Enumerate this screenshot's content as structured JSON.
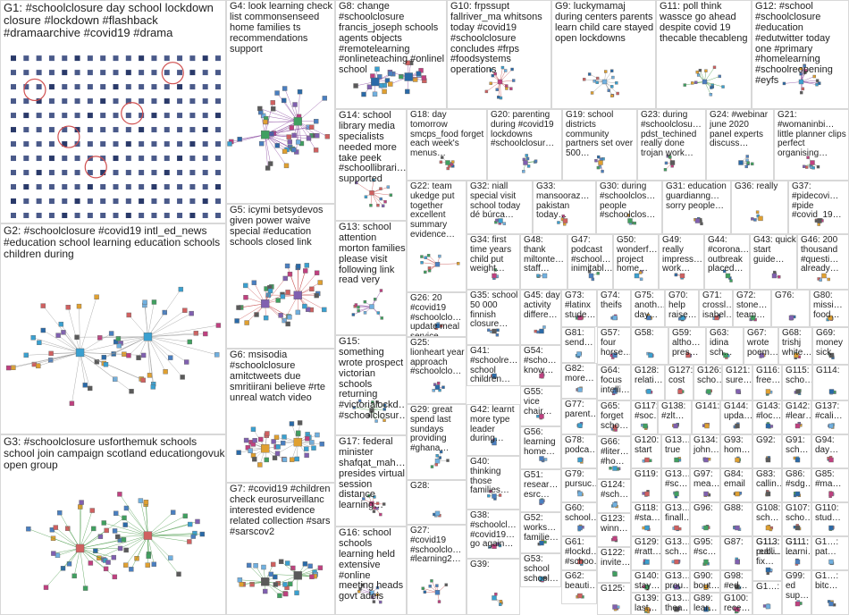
{
  "diagram": {
    "groups": [
      {
        "id": "G1",
        "label": "G1: #schoolclosure day school lockdown closure #lockdown #flashback #dramaarchive #covid19 #drama",
        "layout": "grid"
      },
      {
        "id": "G2",
        "label": "G2: #schoolclosure #covid19 intl_ed_news #education school learning education schools children during",
        "layout": "cluster"
      },
      {
        "id": "G3",
        "label": "G3: #schoolclosure usforthemuk schools school join campaign scotland educationgovuk open group",
        "layout": "cluster"
      },
      {
        "id": "G4",
        "label": "G4: look learning check list commonsenseed home families ts recommendations support",
        "layout": "cluster"
      },
      {
        "id": "G5",
        "label": "G5: icymi betsydevos given power waive special #education schools closed link",
        "layout": "star"
      },
      {
        "id": "G6",
        "label": "G6: msisodia #schoolclosure amitctweets due smritiirani believe #rte unreal watch video",
        "layout": "star"
      },
      {
        "id": "G7",
        "label": "G7: #covid19 #children check eurosurveillanc interested evidence related collection #sars #sarscov2",
        "layout": "cluster"
      },
      {
        "id": "G8",
        "label": "G8: change #schoolclosure francis_joseph schools agents objects #remotelearning #onlineteaching #onlinel school",
        "layout": "cluster"
      },
      {
        "id": "G10",
        "label": "G10: frpssupt fallriver_ma whitsons today #covid19 #schoolclosure concludes #frps #foodsystems operations",
        "layout": "cluster"
      },
      {
        "id": "G9",
        "label": "G9: luckymamaj during centers parents learn child care stayed open lockdowns",
        "layout": "cluster"
      },
      {
        "id": "G11",
        "label": "G11: poll think wassce go ahead despite covid 19 thecable thecableng",
        "layout": "cluster"
      },
      {
        "id": "G12",
        "label": "G12: #school #schoolclosure #education #edutwitter today one #primary #homelearning #schoolreopening #eyfs",
        "layout": "cluster"
      },
      {
        "id": "G14",
        "label": "G14: school library media specialists needed more take peek #schoollibrari… supported",
        "layout": "cluster"
      },
      {
        "id": "G18",
        "label": "G18: day tomorrow smcps_food forget each week's menus…",
        "layout": "cluster"
      },
      {
        "id": "G20",
        "label": "G20: parenting during #covid19 lockdowns #schoolclosur…",
        "layout": "cluster"
      },
      {
        "id": "G19",
        "label": "G19: school districts community partners set over 500…",
        "layout": "cluster"
      },
      {
        "id": "G23",
        "label": "G23: during #schoolclosu… pdst_techined really done trojan work…",
        "layout": "cluster"
      },
      {
        "id": "G24",
        "label": "G24: #webinar june 2020 panel experts discuss…",
        "layout": "cluster"
      },
      {
        "id": "G21",
        "label": "G21: #womaninbi… little planner clips perfect organising…",
        "layout": "cluster"
      },
      {
        "id": "G13",
        "label": "G13: school attention morton families please visit following link read very",
        "layout": "cluster"
      },
      {
        "id": "G22",
        "label": "G22: team ukedge put together excellent summary evidence…",
        "layout": "cluster"
      },
      {
        "id": "G32",
        "label": "G32: niall special visit school today dé búrca…",
        "layout": "cluster"
      },
      {
        "id": "G33",
        "label": "G33: mansooraz… pakistan today…",
        "layout": "cluster"
      },
      {
        "id": "G30",
        "label": "G30: during #schoolclos… people #schoolclos…",
        "layout": "cluster"
      },
      {
        "id": "G31",
        "label": "G31: education guardianng… sorry people…",
        "layout": "cluster"
      },
      {
        "id": "G36",
        "label": "G36: really",
        "layout": "cluster"
      },
      {
        "id": "G37",
        "label": "G37: #pidecovi… #pide #covid_19…",
        "layout": "cluster"
      },
      {
        "id": "G26",
        "label": "G26: 20 #covid19 #schoolclo… update meal service closed…",
        "layout": "cluster"
      },
      {
        "id": "G34",
        "label": "G34: first time years child put weight…",
        "layout": "cluster"
      },
      {
        "id": "G48",
        "label": "G48: thank miltonte… staff…",
        "layout": "cluster"
      },
      {
        "id": "G47",
        "label": "G47: podcast #school… inimitabl…",
        "layout": "cluster"
      },
      {
        "id": "G50",
        "label": "G50: wonderf… project home…",
        "layout": "cluster"
      },
      {
        "id": "G49",
        "label": "G49: really impress… work…",
        "layout": "cluster"
      },
      {
        "id": "G44",
        "label": "G44: #corona… outbreak placed…",
        "layout": "cluster"
      },
      {
        "id": "G43",
        "label": "G43: quick start guide…",
        "layout": "cluster"
      },
      {
        "id": "G46",
        "label": "G46: 200 thousand #questi… already…",
        "layout": "cluster"
      },
      {
        "id": "G35",
        "label": "G35: school 50 000 finnish closure…",
        "layout": "cluster"
      },
      {
        "id": "G45",
        "label": "G45: day activity differe…",
        "layout": "cluster"
      },
      {
        "id": "G73",
        "label": "G73: #latinx stude…",
        "layout": "cluster"
      },
      {
        "id": "G74",
        "label": "G74: theifs",
        "layout": "cluster"
      },
      {
        "id": "G75",
        "label": "G75: anoth… day…",
        "layout": "cluster"
      },
      {
        "id": "G70",
        "label": "G70: help raise…",
        "layout": "cluster"
      },
      {
        "id": "G71",
        "label": "G71: crossl… isabel…",
        "layout": "cluster"
      },
      {
        "id": "G72",
        "label": "G72: stone… team…",
        "layout": "cluster"
      },
      {
        "id": "G76",
        "label": "G76:",
        "layout": "cluster"
      },
      {
        "id": "G80",
        "label": "G80: missi… food…",
        "layout": "cluster"
      },
      {
        "id": "G15",
        "label": "G15: something wrote prospect victorian schools returning #victorialockd… #schoolclosur…",
        "layout": "cluster"
      },
      {
        "id": "G25",
        "label": "G25: lionheart year approach #schoolclo…",
        "layout": "cluster"
      },
      {
        "id": "G54",
        "label": "G54: #scho… know…",
        "layout": "cluster"
      },
      {
        "id": "G81",
        "label": "G81: send…",
        "layout": "cluster"
      },
      {
        "id": "G57",
        "label": "G57: four horse…",
        "layout": "cluster"
      },
      {
        "id": "G58",
        "label": "G58:",
        "layout": "cluster"
      },
      {
        "id": "G59",
        "label": "G59: altho… pres…",
        "layout": "cluster"
      },
      {
        "id": "G63",
        "label": "G63: idina sch…",
        "layout": "cluster"
      },
      {
        "id": "G67",
        "label": "G67: wrote poem…",
        "layout": "cluster"
      },
      {
        "id": "G68",
        "label": "G68: trishj white…",
        "layout": "cluster"
      },
      {
        "id": "G69",
        "label": "G69: money sick",
        "layout": "cluster"
      },
      {
        "id": "G41",
        "label": "G41: #schoolre… school children…",
        "layout": "cluster"
      },
      {
        "id": "G55",
        "label": "G55: vice chair…",
        "layout": "cluster"
      },
      {
        "id": "G82",
        "label": "G82: more…",
        "layout": "cluster"
      },
      {
        "id": "G64",
        "label": "G64: focus intelli…",
        "layout": "cluster"
      },
      {
        "id": "G128",
        "label": "G128: relati…",
        "layout": "cluster"
      },
      {
        "id": "G127",
        "label": "G127: cost",
        "layout": "cluster"
      },
      {
        "id": "G126",
        "label": "G126: scho…",
        "layout": "cluster"
      },
      {
        "id": "G121",
        "label": "G121: sure…",
        "layout": "cluster"
      },
      {
        "id": "G116",
        "label": "G116: free…",
        "layout": "cluster"
      },
      {
        "id": "G115",
        "label": "G115: scho…",
        "layout": "cluster"
      },
      {
        "id": "G114",
        "label": "G114:",
        "layout": "cluster"
      },
      {
        "id": "G17",
        "label": "G17: federal minister shafqat_mah… presides virtual session distance learning…",
        "layout": "cluster"
      },
      {
        "id": "G29",
        "label": "G29: great spend last sundays providing #ghana…",
        "layout": "cluster"
      },
      {
        "id": "G42",
        "label": "G42: learnt more type leader during…",
        "layout": "cluster"
      },
      {
        "id": "G77",
        "label": "G77: parent…",
        "layout": "cluster"
      },
      {
        "id": "G65",
        "label": "G65: forget scho…",
        "layout": "cluster"
      },
      {
        "id": "G117",
        "label": "G117: #soc…",
        "layout": "cluster"
      },
      {
        "id": "G138",
        "label": "G138: #zlt…",
        "layout": "cluster"
      },
      {
        "id": "G141",
        "label": "G141:",
        "layout": "cluster"
      },
      {
        "id": "G144",
        "label": "G144: upda…",
        "layout": "cluster"
      },
      {
        "id": "G143",
        "label": "G143: #loc…",
        "layout": "cluster"
      },
      {
        "id": "G142",
        "label": "G142: #lear…",
        "layout": "cluster"
      },
      {
        "id": "G137",
        "label": "G137: #cali…",
        "layout": "cluster"
      },
      {
        "id": "G56",
        "label": "G56: learning home…",
        "layout": "cluster"
      },
      {
        "id": "G78",
        "label": "G78: podca…",
        "layout": "cluster"
      },
      {
        "id": "G120",
        "label": "G120: start",
        "layout": "cluster"
      },
      {
        "id": "G13b",
        "label": "G13…: true",
        "layout": "cluster"
      },
      {
        "id": "G134",
        "label": "G134: john…",
        "layout": "cluster"
      },
      {
        "id": "G93",
        "label": "G93: hom…",
        "layout": "cluster"
      },
      {
        "id": "G92",
        "label": "G92:",
        "layout": "cluster"
      },
      {
        "id": "G91",
        "label": "G91: sch…",
        "layout": "cluster"
      },
      {
        "id": "G94",
        "label": "G94: day…",
        "layout": "cluster"
      },
      {
        "id": "G28",
        "label": "G28:",
        "layout": "cluster"
      },
      {
        "id": "G40",
        "label": "G40: thinking those families…",
        "layout": "cluster"
      },
      {
        "id": "G66",
        "label": "G66: #liter… #ho…",
        "layout": "cluster"
      },
      {
        "id": "G119",
        "label": "G119:",
        "layout": "cluster"
      },
      {
        "id": "G13c",
        "label": "G13…: #sc…",
        "layout": "cluster"
      },
      {
        "id": "G97",
        "label": "G97: mea…",
        "layout": "cluster"
      },
      {
        "id": "G84",
        "label": "G84: email",
        "layout": "cluster"
      },
      {
        "id": "G83",
        "label": "G83: callin…",
        "layout": "cluster"
      },
      {
        "id": "G86",
        "label": "G86: #sdg…",
        "layout": "cluster"
      },
      {
        "id": "G85",
        "label": "G85: #ma…",
        "layout": "cluster"
      },
      {
        "id": "G79",
        "label": "G79: pursuc…",
        "layout": "cluster"
      },
      {
        "id": "G51",
        "label": "G51: resear… esrc…",
        "layout": "cluster"
      },
      {
        "id": "G118",
        "label": "G118: #sta…",
        "layout": "cluster"
      },
      {
        "id": "G13d",
        "label": "G13…: finall…",
        "layout": "cluster"
      },
      {
        "id": "G96",
        "label": "G96:",
        "layout": "cluster"
      },
      {
        "id": "G88",
        "label": "G88:",
        "layout": "cluster"
      },
      {
        "id": "G108",
        "label": "G108: sch…",
        "layout": "cluster"
      },
      {
        "id": "G107",
        "label": "G107: scho…",
        "layout": "cluster"
      },
      {
        "id": "G110",
        "label": "G110: stud…",
        "layout": "cluster"
      },
      {
        "id": "G38",
        "label": "G38: #schoolcl… #covid19… go again…",
        "layout": "cluster"
      },
      {
        "id": "G124",
        "label": "G124: #sch…",
        "layout": "cluster"
      },
      {
        "id": "G60",
        "label": "G60: school…",
        "layout": "cluster"
      },
      {
        "id": "G129",
        "label": "G129: #ratt…",
        "layout": "cluster"
      },
      {
        "id": "G13e",
        "label": "G13…: sch…",
        "layout": "cluster"
      },
      {
        "id": "G95",
        "label": "G95: #sc…",
        "layout": "cluster"
      },
      {
        "id": "G87",
        "label": "G87:",
        "layout": "cluster"
      },
      {
        "id": "G113",
        "label": "G113: publi…",
        "layout": "cluster"
      },
      {
        "id": "G111",
        "label": "G111: learni…",
        "layout": "cluster"
      },
      {
        "id": "G52",
        "label": "G52: works… familie…",
        "layout": "cluster"
      },
      {
        "id": "G123",
        "label": "G123: winn…",
        "layout": "cluster"
      },
      {
        "id": "G16",
        "label": "G16: school schools learning held extensive #online meeting heads govt adeis",
        "layout": "cluster"
      },
      {
        "id": "G27",
        "label": "G27: #covid19 #schoolclo… #learning2…",
        "layout": "cluster"
      },
      {
        "id": "G39",
        "label": "G39:",
        "layout": "cluster"
      },
      {
        "id": "G61",
        "label": "G61: #lockd… #schoo…",
        "layout": "cluster"
      },
      {
        "id": "G140",
        "label": "G140: stay…",
        "layout": "cluster"
      },
      {
        "id": "G13f",
        "label": "G13…: prou…",
        "layout": "cluster"
      },
      {
        "id": "G90",
        "label": "G90: bout…",
        "layout": "cluster"
      },
      {
        "id": "G98",
        "label": "G98: #ed…",
        "layout": "cluster"
      },
      {
        "id": "G1a",
        "label": "G1…: real… fix…",
        "layout": "cluster"
      },
      {
        "id": "G99",
        "label": "G99: ed sup…",
        "layout": "cluster"
      },
      {
        "id": "G1b",
        "label": "G1…: pat…",
        "layout": "cluster"
      },
      {
        "id": "G1c",
        "label": "G1…: bitc…",
        "layout": "cluster"
      },
      {
        "id": "G53",
        "label": "G53: school school…",
        "layout": "cluster"
      },
      {
        "id": "G62",
        "label": "G62: beauti…",
        "layout": "cluster"
      },
      {
        "id": "G122",
        "label": "G122: invite…",
        "layout": "cluster"
      },
      {
        "id": "G125",
        "label": "G125:",
        "layout": "cluster"
      },
      {
        "id": "G139",
        "label": "G139: last…",
        "layout": "cluster"
      },
      {
        "id": "G13g",
        "label": "G13…: thea…",
        "layout": "cluster"
      },
      {
        "id": "G89",
        "label": "G89: lear…",
        "layout": "cluster"
      },
      {
        "id": "G100",
        "label": "G100: rece…",
        "layout": "cluster"
      },
      {
        "id": "G1d",
        "label": "G1…:",
        "layout": "cluster"
      },
      {
        "id": "G1e",
        "label": "G1…: …",
        "layout": "cluster"
      }
    ]
  },
  "colors": {
    "edge": "#9a9a9a",
    "edge_red": "#c85050",
    "edge_green": "#4a9a4a",
    "edge_purple": "#8a4aa0",
    "highlight_ring": "#d05050"
  }
}
